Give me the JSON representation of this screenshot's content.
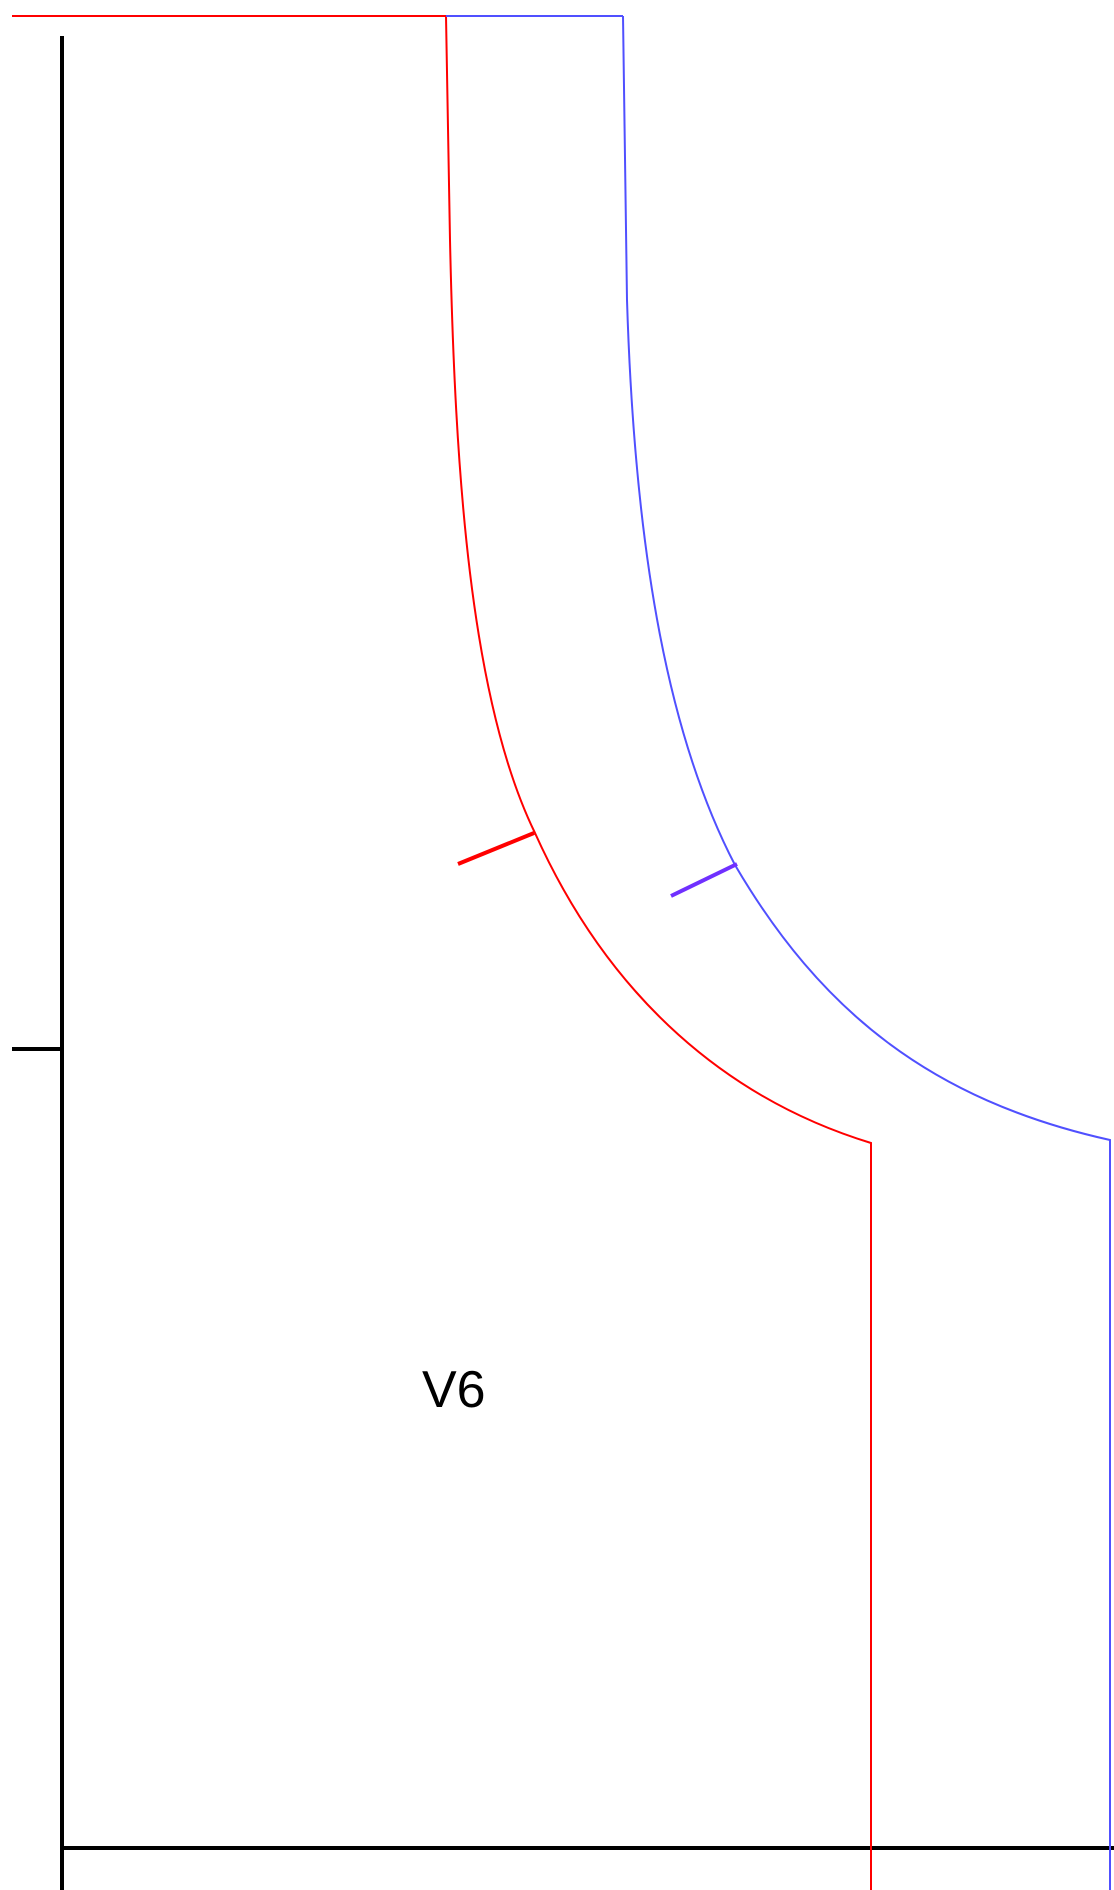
{
  "piece_label": "V6",
  "colors": {
    "background": "#ffffff",
    "frame": "#000000",
    "red_outline": "#ff0000",
    "blue_outline": "#5050ff",
    "red_notch": "#ff0000",
    "purple_notch": "#7030ff"
  }
}
